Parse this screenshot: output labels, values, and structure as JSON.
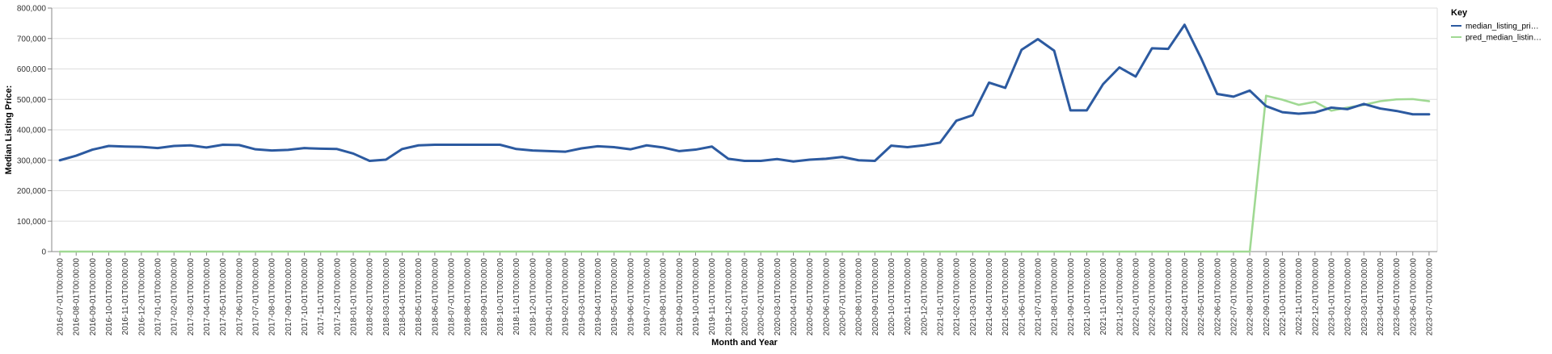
{
  "chart_data": {
    "type": "line",
    "xlabel": "Month and Year",
    "ylabel": "Median Listing Price:",
    "ylim": [
      0,
      800000
    ],
    "yticks": [
      0,
      100000,
      200000,
      300000,
      400000,
      500000,
      600000,
      700000,
      800000
    ],
    "grid": true,
    "legend": {
      "title": "Key",
      "position": "top-right",
      "entries": [
        "median_listing_pri…",
        "pred_median_listin…"
      ]
    },
    "categories": [
      "2016-07-01T00:00:00",
      "2016-08-01T00:00:00",
      "2016-09-01T00:00:00",
      "2016-10-01T00:00:00",
      "2016-11-01T00:00:00",
      "2016-12-01T00:00:00",
      "2017-01-01T00:00:00",
      "2017-02-01T00:00:00",
      "2017-03-01T00:00:00",
      "2017-04-01T00:00:00",
      "2017-05-01T00:00:00",
      "2017-06-01T00:00:00",
      "2017-07-01T00:00:00",
      "2017-08-01T00:00:00",
      "2017-09-01T00:00:00",
      "2017-10-01T00:00:00",
      "2017-11-01T00:00:00",
      "2017-12-01T00:00:00",
      "2018-01-01T00:00:00",
      "2018-02-01T00:00:00",
      "2018-03-01T00:00:00",
      "2018-04-01T00:00:00",
      "2018-05-01T00:00:00",
      "2018-06-01T00:00:00",
      "2018-07-01T00:00:00",
      "2018-08-01T00:00:00",
      "2018-09-01T00:00:00",
      "2018-10-01T00:00:00",
      "2018-11-01T00:00:00",
      "2018-12-01T00:00:00",
      "2019-01-01T00:00:00",
      "2019-02-01T00:00:00",
      "2019-03-01T00:00:00",
      "2019-04-01T00:00:00",
      "2019-05-01T00:00:00",
      "2019-06-01T00:00:00",
      "2019-07-01T00:00:00",
      "2019-08-01T00:00:00",
      "2019-09-01T00:00:00",
      "2019-10-01T00:00:00",
      "2019-11-01T00:00:00",
      "2019-12-01T00:00:00",
      "2020-01-01T00:00:00",
      "2020-02-01T00:00:00",
      "2020-03-01T00:00:00",
      "2020-04-01T00:00:00",
      "2020-05-01T00:00:00",
      "2020-06-01T00:00:00",
      "2020-07-01T00:00:00",
      "2020-08-01T00:00:00",
      "2020-09-01T00:00:00",
      "2020-10-01T00:00:00",
      "2020-11-01T00:00:00",
      "2020-12-01T00:00:00",
      "2021-01-01T00:00:00",
      "2021-02-01T00:00:00",
      "2021-03-01T00:00:00",
      "2021-04-01T00:00:00",
      "2021-05-01T00:00:00",
      "2021-06-01T00:00:00",
      "2021-07-01T00:00:00",
      "2021-08-01T00:00:00",
      "2021-09-01T00:00:00",
      "2021-10-01T00:00:00",
      "2021-11-01T00:00:00",
      "2021-12-01T00:00:00",
      "2022-01-01T00:00:00",
      "2022-02-01T00:00:00",
      "2022-03-01T00:00:00",
      "2022-04-01T00:00:00",
      "2022-05-01T00:00:00",
      "2022-06-01T00:00:00",
      "2022-07-01T00:00:00",
      "2022-08-01T00:00:00",
      "2022-09-01T00:00:00",
      "2022-10-01T00:00:00",
      "2022-11-01T00:00:00",
      "2022-12-01T00:00:00",
      "2023-01-01T00:00:00",
      "2023-02-01T00:00:00",
      "2023-03-01T00:00:00",
      "2023-04-01T00:00:00",
      "2023-05-01T00:00:00",
      "2023-06-01T00:00:00",
      "2023-07-01T00:00:00"
    ],
    "series": [
      {
        "name": "median_listing_pri…",
        "color": "#2c5aa0",
        "values": [
          300000,
          315000,
          335000,
          347000,
          345000,
          344000,
          340000,
          347000,
          349000,
          342000,
          351000,
          350000,
          336000,
          332000,
          334000,
          340000,
          338000,
          337000,
          322000,
          298000,
          302000,
          337000,
          349000,
          351000,
          351000,
          351000,
          351000,
          351000,
          337000,
          332000,
          330000,
          328000,
          339000,
          346000,
          343000,
          336000,
          349000,
          342000,
          330000,
          335000,
          345000,
          305000,
          298000,
          298000,
          304000,
          296000,
          302000,
          305000,
          311000,
          300000,
          298000,
          348000,
          343000,
          349000,
          358000,
          430000,
          448000,
          555000,
          538000,
          663000,
          698000,
          660000,
          464000,
          464000,
          550000,
          605000,
          575000,
          668000,
          666000,
          745000,
          637000,
          518000,
          509000,
          529000,
          478000,
          458000,
          453000,
          457000,
          473000,
          468000,
          485000,
          470000,
          462000,
          451000,
          451000
        ]
      },
      {
        "name": "pred_median_listin…",
        "color": "#a0d993",
        "values": [
          0,
          0,
          0,
          0,
          0,
          0,
          0,
          0,
          0,
          0,
          0,
          0,
          0,
          0,
          0,
          0,
          0,
          0,
          0,
          0,
          0,
          0,
          0,
          0,
          0,
          0,
          0,
          0,
          0,
          0,
          0,
          0,
          0,
          0,
          0,
          0,
          0,
          0,
          0,
          0,
          0,
          0,
          0,
          0,
          0,
          0,
          0,
          0,
          0,
          0,
          0,
          0,
          0,
          0,
          0,
          0,
          0,
          0,
          0,
          0,
          0,
          0,
          0,
          0,
          0,
          0,
          0,
          0,
          0,
          0,
          0,
          0,
          0,
          0,
          512000,
          499000,
          482000,
          492000,
          463000,
          473000,
          482000,
          494000,
          500000,
          501000,
          494000
        ]
      }
    ]
  }
}
